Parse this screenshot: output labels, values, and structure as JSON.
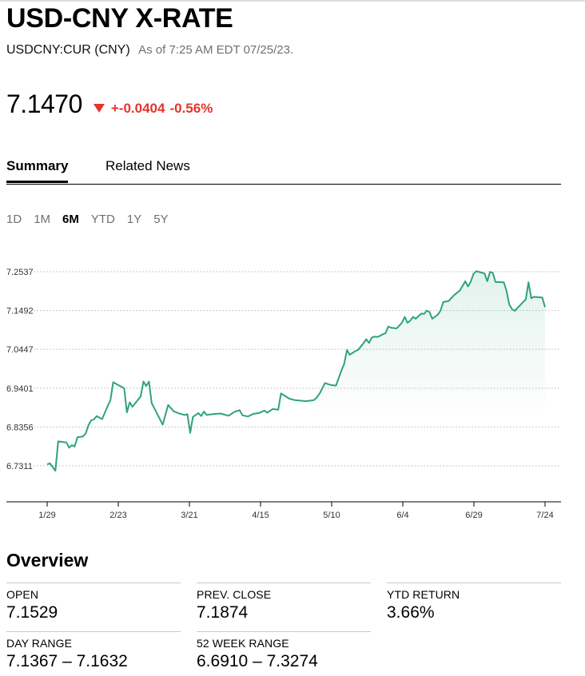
{
  "header": {
    "title": "USD-CNY X-RATE",
    "ticker": "USDCNY:CUR (CNY)",
    "as_of": "As of 7:25 AM EDT 07/25/23."
  },
  "quote": {
    "price": "7.1470",
    "change": "+-0.0404",
    "change_pct": "-0.56%",
    "direction": "down",
    "down_color": "#e2342b"
  },
  "tabs": [
    {
      "label": "Summary",
      "active": true
    },
    {
      "label": "Related News",
      "active": false
    }
  ],
  "ranges": [
    {
      "label": "1D",
      "active": false
    },
    {
      "label": "1M",
      "active": false
    },
    {
      "label": "6M",
      "active": true
    },
    {
      "label": "YTD",
      "active": false
    },
    {
      "label": "1Y",
      "active": false
    },
    {
      "label": "5Y",
      "active": false
    }
  ],
  "chart_data": {
    "type": "area",
    "y_ticks": [
      "7.2537",
      "7.1492",
      "7.0447",
      "6.9401",
      "6.8356",
      "6.7311"
    ],
    "x_ticks": [
      "1/29",
      "2/23",
      "3/21",
      "4/15",
      "5/10",
      "6/4",
      "6/29",
      "7/24"
    ],
    "ylim": [
      6.7311,
      7.2537
    ],
    "xlim": [
      0,
      176
    ],
    "line_color": "#2fa37a",
    "grid": "dashed horizontal",
    "series": [
      {
        "points": [
          [
            0,
            6.735
          ],
          [
            1,
            6.738
          ],
          [
            3,
            6.718
          ],
          [
            4,
            6.797
          ],
          [
            7,
            6.794
          ],
          [
            8,
            6.78
          ],
          [
            9,
            6.787
          ],
          [
            10,
            6.783
          ],
          [
            11,
            6.808
          ],
          [
            13,
            6.81
          ],
          [
            14,
            6.818
          ],
          [
            15,
            6.84
          ],
          [
            16,
            6.854
          ],
          [
            17,
            6.856
          ],
          [
            18,
            6.865
          ],
          [
            20,
            6.857
          ],
          [
            22,
            6.892
          ],
          [
            23,
            6.908
          ],
          [
            24,
            6.956
          ],
          [
            28,
            6.94
          ],
          [
            29,
            6.875
          ],
          [
            30,
            6.902
          ],
          [
            31,
            6.89
          ],
          [
            34,
            6.918
          ],
          [
            35,
            6.958
          ],
          [
            36,
            6.946
          ],
          [
            37,
            6.958
          ],
          [
            38,
            6.9
          ],
          [
            42,
            6.842
          ],
          [
            44,
            6.895
          ],
          [
            46,
            6.878
          ],
          [
            48,
            6.872
          ],
          [
            50,
            6.868
          ],
          [
            51,
            6.87
          ],
          [
            52,
            6.82
          ],
          [
            53,
            6.863
          ],
          [
            55,
            6.873
          ],
          [
            56,
            6.865
          ],
          [
            57,
            6.877
          ],
          [
            58,
            6.868
          ],
          [
            60,
            6.87
          ],
          [
            63,
            6.872
          ],
          [
            66,
            6.866
          ],
          [
            68,
            6.876
          ],
          [
            70,
            6.881
          ],
          [
            71,
            6.867
          ],
          [
            73,
            6.864
          ],
          [
            75,
            6.871
          ],
          [
            77,
            6.873
          ],
          [
            79,
            6.88
          ],
          [
            80,
            6.874
          ],
          [
            81,
            6.879
          ],
          [
            82,
            6.884
          ],
          [
            84,
            6.882
          ],
          [
            85,
            6.926
          ],
          [
            88,
            6.912
          ],
          [
            90,
            6.908
          ],
          [
            94,
            6.905
          ],
          [
            97,
            6.908
          ],
          [
            98,
            6.915
          ],
          [
            99,
            6.925
          ],
          [
            101,
            6.954
          ],
          [
            103,
            6.949
          ],
          [
            105,
            6.947
          ],
          [
            107,
            6.988
          ],
          [
            108,
            7.006
          ],
          [
            109,
            7.043
          ],
          [
            110,
            7.03
          ],
          [
            112,
            7.04
          ],
          [
            113,
            7.043
          ],
          [
            114,
            7.052
          ],
          [
            115,
            7.061
          ],
          [
            116,
            7.072
          ],
          [
            117,
            7.062
          ],
          [
            118,
            7.076
          ],
          [
            119,
            7.079
          ],
          [
            120,
            7.078
          ],
          [
            121,
            7.081
          ],
          [
            122,
            7.085
          ],
          [
            123,
            7.088
          ],
          [
            124,
            7.106
          ],
          [
            125,
            7.103
          ],
          [
            127,
            7.101
          ],
          [
            128,
            7.108
          ],
          [
            129,
            7.117
          ],
          [
            130,
            7.132
          ],
          [
            131,
            7.116
          ],
          [
            132,
            7.122
          ],
          [
            133,
            7.132
          ],
          [
            134,
            7.127
          ],
          [
            136,
            7.141
          ],
          [
            137,
            7.14
          ],
          [
            138,
            7.149
          ],
          [
            139,
            7.145
          ],
          [
            140,
            7.127
          ],
          [
            142,
            7.138
          ],
          [
            143,
            7.149
          ],
          [
            144,
            7.172
          ],
          [
            146,
            7.175
          ],
          [
            148,
            7.191
          ],
          [
            150,
            7.203
          ],
          [
            152,
            7.228
          ],
          [
            153,
            7.214
          ],
          [
            154,
            7.227
          ],
          [
            155,
            7.248
          ],
          [
            156,
            7.255
          ],
          [
            159,
            7.249
          ],
          [
            160,
            7.228
          ],
          [
            161,
            7.253
          ],
          [
            162,
            7.251
          ],
          [
            163,
            7.226
          ],
          [
            166,
            7.225
          ],
          [
            167,
            7.202
          ],
          [
            168,
            7.165
          ],
          [
            169,
            7.153
          ],
          [
            170,
            7.148
          ],
          [
            173,
            7.172
          ],
          [
            174,
            7.179
          ],
          [
            175,
            7.225
          ],
          [
            176,
            7.182
          ],
          [
            177,
            7.186
          ],
          [
            180,
            7.184
          ],
          [
            181,
            7.158
          ]
        ]
      }
    ]
  },
  "overview": {
    "title": "Overview",
    "stats": [
      {
        "label": "OPEN",
        "value": "7.1529"
      },
      {
        "label": "PREV. CLOSE",
        "value": "7.1874"
      },
      {
        "label": "YTD RETURN",
        "value": "3.66%"
      },
      {
        "label": "DAY RANGE",
        "value": "7.1367 – 7.1632"
      },
      {
        "label": "52 WEEK RANGE",
        "value": "6.6910 – 7.3274"
      }
    ]
  }
}
